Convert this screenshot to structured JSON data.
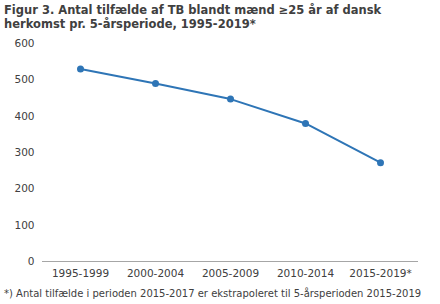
{
  "chart_data": {
    "type": "line",
    "title": "Figur 3. Antal tilfælde af TB blandt mænd ≥25 år af dansk herkomst pr. 5-årsperiode, 1995-2019*",
    "footnote": "*) Antal tilfælde i perioden 2015-2017 er ekstrapoleret til 5-årsperioden 2015-2019",
    "categories": [
      "1995-1999",
      "2000-2004",
      "2005-2009",
      "2010-2014",
      "2015-2019*"
    ],
    "values": [
      530,
      490,
      447,
      380,
      272
    ],
    "color": "#2e75b6",
    "marker": "circle",
    "ylim": [
      0,
      600
    ],
    "yticks": [
      0,
      100,
      200,
      300,
      400,
      500,
      600
    ],
    "grid": false
  }
}
